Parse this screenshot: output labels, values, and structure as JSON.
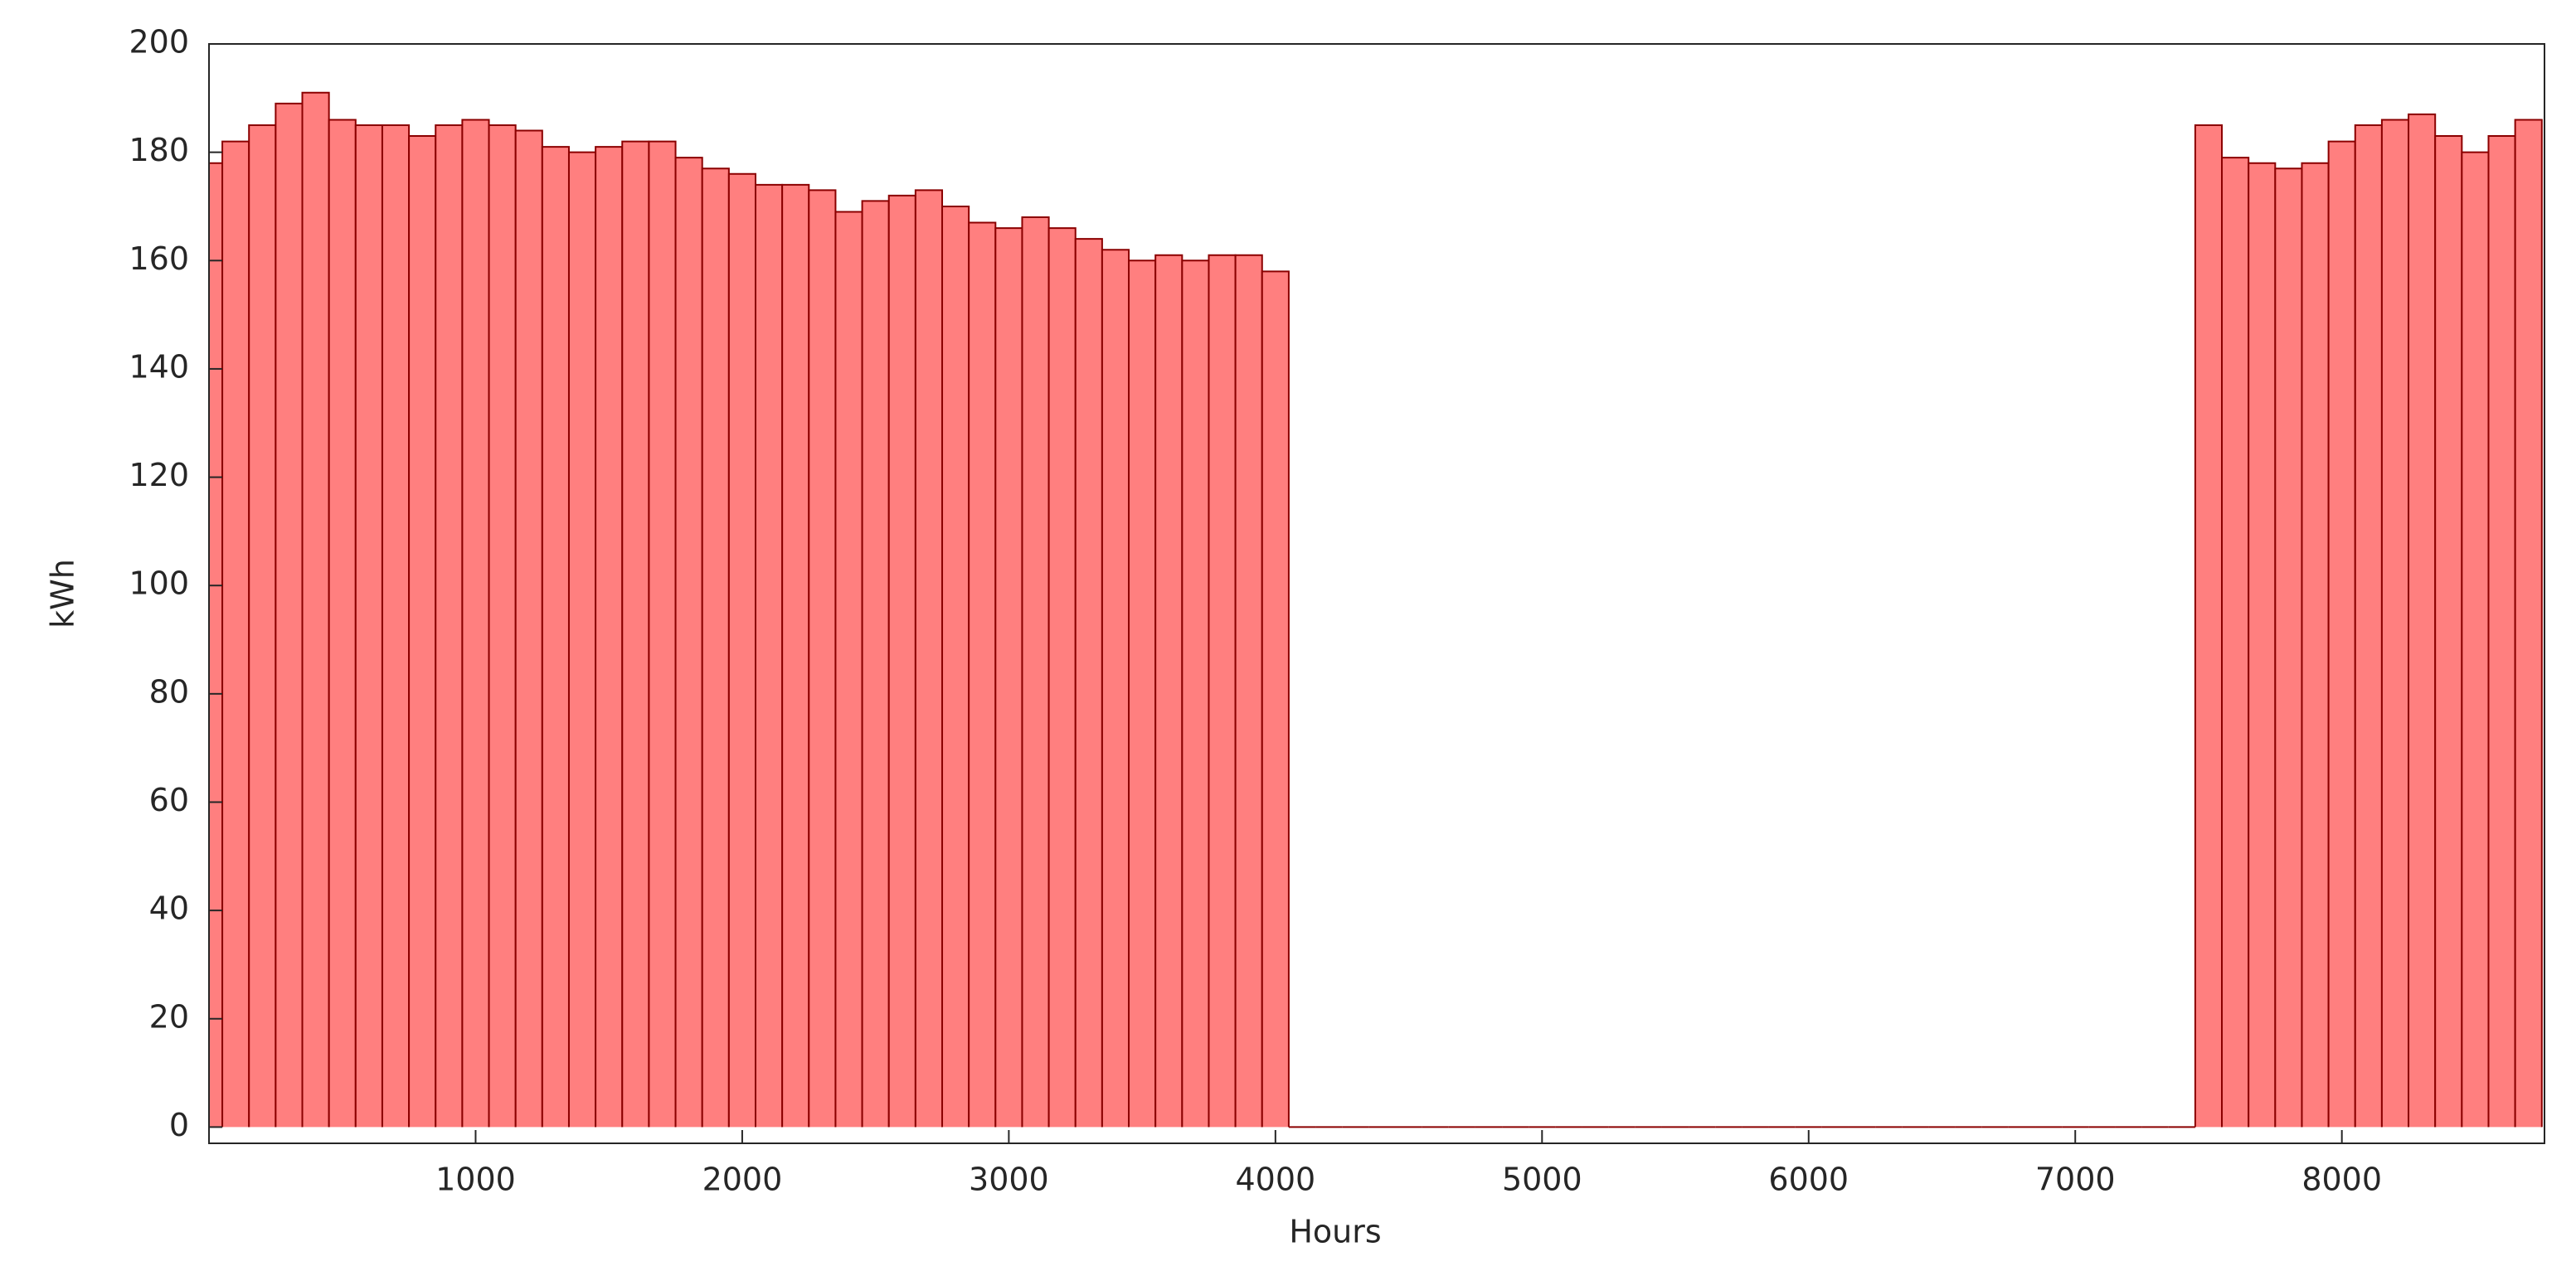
{
  "chart_data": {
    "type": "bar",
    "xlabel": "Hours",
    "ylabel": "kWh",
    "x": [
      0,
      100,
      200,
      300,
      400,
      500,
      600,
      700,
      800,
      900,
      1000,
      1100,
      1200,
      1300,
      1400,
      1500,
      1600,
      1700,
      1800,
      1900,
      2000,
      2100,
      2200,
      2300,
      2400,
      2500,
      2600,
      2700,
      2800,
      2900,
      3000,
      3100,
      3200,
      3300,
      3400,
      3500,
      3600,
      3700,
      3800,
      3900,
      4000,
      4100,
      4200,
      4300,
      4400,
      4500,
      4600,
      4700,
      4800,
      4900,
      5000,
      5100,
      5200,
      5300,
      5400,
      5500,
      5600,
      5700,
      5800,
      5900,
      6000,
      6100,
      6200,
      6300,
      6400,
      6500,
      6600,
      6700,
      6800,
      6900,
      7000,
      7100,
      7200,
      7300,
      7400,
      7500,
      7600,
      7700,
      7800,
      7900,
      8000,
      8100,
      8200,
      8300,
      8400,
      8500,
      8600,
      8700
    ],
    "values": [
      178,
      182,
      185,
      189,
      191,
      186,
      185,
      185,
      183,
      185,
      186,
      185,
      184,
      181,
      180,
      181,
      182,
      182,
      179,
      177,
      176,
      174,
      174,
      173,
      169,
      171,
      172,
      173,
      170,
      167,
      166,
      168,
      166,
      164,
      162,
      160,
      161,
      160,
      161,
      161,
      158,
      0,
      0,
      0,
      0,
      0,
      0,
      0,
      0,
      0,
      0,
      0,
      0,
      0,
      0,
      0,
      0,
      0,
      0,
      0,
      0,
      0,
      0,
      0,
      0,
      0,
      0,
      0,
      0,
      0,
      0,
      0,
      0,
      0,
      0,
      185,
      179,
      178,
      177,
      178,
      182,
      185,
      186,
      187,
      183,
      180,
      183,
      186
    ],
    "color": "#ff7f7f",
    "edgecolor": "#8b0000",
    "xlim": [
      0,
      8760
    ],
    "ylim": [
      -3,
      200
    ],
    "xticks": [
      1000,
      2000,
      3000,
      4000,
      5000,
      6000,
      7000,
      8000
    ],
    "yticks": [
      0,
      20,
      40,
      60,
      80,
      100,
      120,
      140,
      160,
      180,
      200
    ]
  }
}
